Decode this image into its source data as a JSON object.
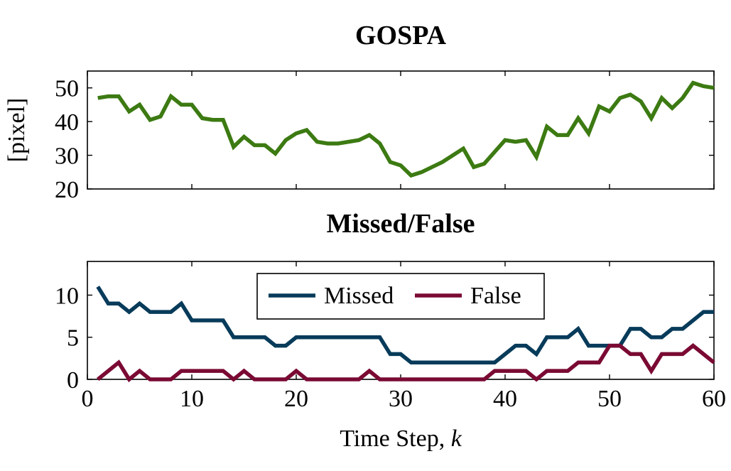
{
  "chart_data": [
    {
      "type": "line",
      "title": "GOSPA",
      "xlabel": "",
      "ylabel": "[pixel]",
      "xlim": [
        0,
        60
      ],
      "ylim": [
        20,
        55
      ],
      "xticks": [
        0,
        10,
        20,
        30,
        40,
        50,
        60
      ],
      "xtick_labels_visible": false,
      "yticks": [
        20,
        30,
        40,
        50
      ],
      "grid": false,
      "series": [
        {
          "name": "",
          "color": "#3c7a12",
          "x": [
            1,
            2,
            3,
            4,
            5,
            6,
            7,
            8,
            9,
            10,
            11,
            12,
            13,
            14,
            15,
            16,
            17,
            18,
            19,
            20,
            21,
            22,
            23,
            24,
            25,
            26,
            27,
            28,
            29,
            30,
            31,
            32,
            33,
            34,
            35,
            36,
            37,
            38,
            39,
            40,
            41,
            42,
            43,
            44,
            45,
            46,
            47,
            48,
            49,
            50,
            51,
            52,
            53,
            54,
            55,
            56,
            57,
            58,
            59,
            60
          ],
          "values": [
            47,
            47.5,
            47.5,
            43,
            45,
            40.5,
            41.5,
            47.5,
            45,
            45,
            41,
            40.5,
            40.5,
            32.5,
            35.5,
            33,
            33,
            30.5,
            34.5,
            36.5,
            37.5,
            34,
            33.5,
            33.5,
            34,
            34.5,
            36,
            33.5,
            28,
            27,
            24,
            25,
            26.5,
            28,
            30,
            32,
            26.5,
            27.5,
            31,
            34.5,
            34,
            34.5,
            29.5,
            38.5,
            36,
            36,
            41,
            36.5,
            44.5,
            43,
            47,
            48,
            46,
            41,
            47,
            44,
            47,
            51.5,
            50.5,
            50
          ]
        }
      ]
    },
    {
      "type": "line",
      "title": "Missed/False",
      "xlabel": "Time Step, k",
      "ylabel": "",
      "xlim": [
        0,
        60
      ],
      "ylim": [
        0,
        14
      ],
      "xticks": [
        0,
        10,
        20,
        30,
        40,
        50,
        60
      ],
      "yticks": [
        0,
        5,
        10
      ],
      "grid": false,
      "legend": "top-center",
      "series": [
        {
          "name": "Missed",
          "color": "#083b5a",
          "x": [
            1,
            2,
            3,
            4,
            5,
            6,
            7,
            8,
            9,
            10,
            11,
            12,
            13,
            14,
            15,
            16,
            17,
            18,
            19,
            20,
            21,
            22,
            23,
            24,
            25,
            26,
            27,
            28,
            29,
            30,
            31,
            32,
            33,
            34,
            35,
            36,
            37,
            38,
            39,
            40,
            41,
            42,
            43,
            44,
            45,
            46,
            47,
            48,
            49,
            50,
            51,
            52,
            53,
            54,
            55,
            56,
            57,
            58,
            59,
            60
          ],
          "values": [
            11,
            9,
            9,
            8,
            9,
            8,
            8,
            8,
            9,
            7,
            7,
            7,
            7,
            5,
            5,
            5,
            5,
            4,
            4,
            5,
            5,
            5,
            5,
            5,
            5,
            5,
            5,
            5,
            3,
            3,
            2,
            2,
            2,
            2,
            2,
            2,
            2,
            2,
            2,
            3,
            4,
            4,
            3,
            5,
            5,
            5,
            6,
            4,
            4,
            4,
            4,
            6,
            6,
            5,
            5,
            6,
            6,
            7,
            8,
            8
          ]
        },
        {
          "name": "False",
          "color": "#7a0a33",
          "x": [
            1,
            2,
            3,
            4,
            5,
            6,
            7,
            8,
            9,
            10,
            11,
            12,
            13,
            14,
            15,
            16,
            17,
            18,
            19,
            20,
            21,
            22,
            23,
            24,
            25,
            26,
            27,
            28,
            29,
            30,
            31,
            32,
            33,
            34,
            35,
            36,
            37,
            38,
            39,
            40,
            41,
            42,
            43,
            44,
            45,
            46,
            47,
            48,
            49,
            50,
            51,
            52,
            53,
            54,
            55,
            56,
            57,
            58,
            59,
            60
          ],
          "values": [
            0,
            1,
            2,
            0,
            1,
            0,
            0,
            0,
            1,
            1,
            1,
            1,
            1,
            0,
            1,
            0,
            0,
            0,
            0,
            1,
            0,
            0,
            0,
            0,
            0,
            0,
            1,
            0,
            0,
            0,
            0,
            0,
            0,
            0,
            0,
            0,
            0,
            0,
            1,
            1,
            1,
            1,
            0,
            1,
            1,
            1,
            2,
            2,
            2,
            4,
            4,
            3,
            3,
            1,
            3,
            3,
            3,
            4,
            3,
            2
          ]
        }
      ]
    }
  ]
}
